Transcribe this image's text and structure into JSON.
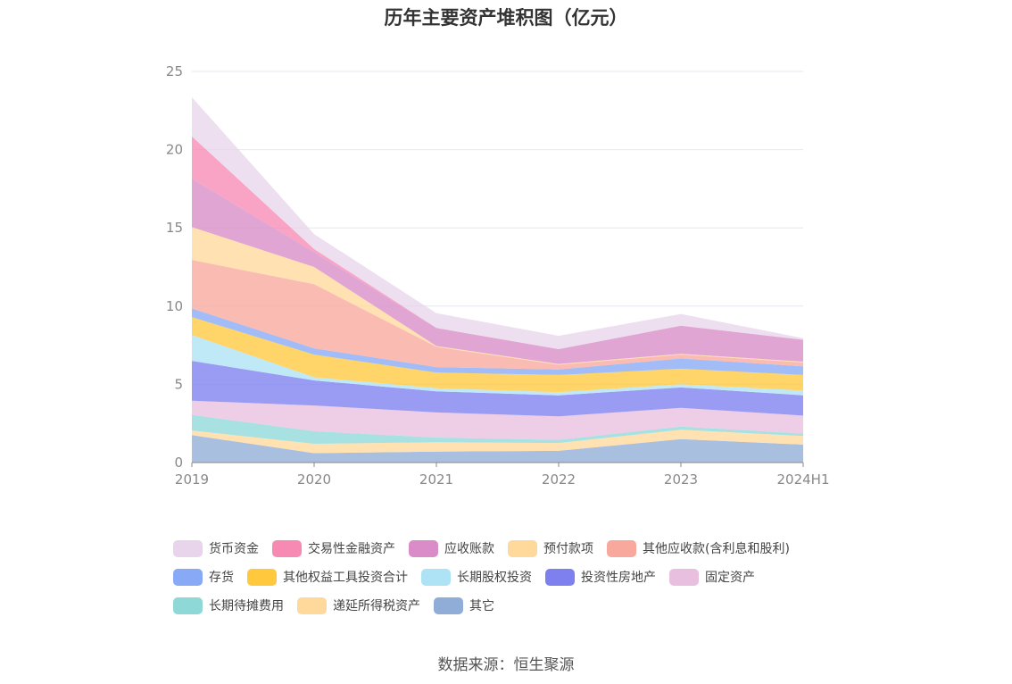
{
  "source_note": "数据来源：恒生聚源",
  "chart_data": {
    "type": "area",
    "stacked": true,
    "title": "历年主要资产堆积图（亿元）",
    "xlabel": "",
    "ylabel": "",
    "categories": [
      "2019",
      "2020",
      "2021",
      "2022",
      "2023",
      "2024H1"
    ],
    "ylim": [
      0,
      25
    ],
    "yticks": [
      0,
      5,
      10,
      15,
      20,
      25
    ],
    "grid": true,
    "legend_position": "bottom",
    "series": [
      {
        "name": "其它",
        "color": "#8fadd6",
        "values": [
          1.75,
          0.6,
          0.7,
          0.75,
          1.5,
          1.15
        ]
      },
      {
        "name": "递延所得税资产",
        "color": "#ffd89c",
        "values": [
          0.3,
          0.6,
          0.6,
          0.5,
          0.6,
          0.55
        ]
      },
      {
        "name": "长期待摊费用",
        "color": "#8ed8d8",
        "values": [
          1.0,
          0.8,
          0.3,
          0.2,
          0.2,
          0.15
        ]
      },
      {
        "name": "固定资产",
        "color": "#e9bfe0",
        "values": [
          0.9,
          1.65,
          1.6,
          1.5,
          1.2,
          1.15
        ]
      },
      {
        "name": "投资性房地产",
        "color": "#7e80f0",
        "values": [
          2.55,
          1.6,
          1.35,
          1.35,
          1.3,
          1.3
        ]
      },
      {
        "name": "长期股权投资",
        "color": "#aee3f5",
        "values": [
          1.65,
          0.2,
          0.2,
          0.2,
          0.2,
          0.3
        ]
      },
      {
        "name": "其他权益工具投资合计",
        "color": "#ffc83d",
        "values": [
          1.15,
          1.45,
          1.0,
          1.1,
          1.0,
          1.0
        ]
      },
      {
        "name": "存货",
        "color": "#88a9f5",
        "values": [
          0.55,
          0.4,
          0.35,
          0.35,
          0.65,
          0.55
        ]
      },
      {
        "name": "其他应收款(含利息和股利)",
        "color": "#f8a89d",
        "values": [
          3.1,
          4.1,
          1.3,
          0.3,
          0.25,
          0.25
        ]
      },
      {
        "name": "预付款项",
        "color": "#ffd89c",
        "values": [
          2.1,
          1.1,
          0.05,
          0.05,
          0.05,
          0.05
        ]
      },
      {
        "name": "应收账款",
        "color": "#d98cc8",
        "values": [
          3.1,
          0.95,
          1.15,
          0.95,
          1.8,
          1.4
        ]
      },
      {
        "name": "交易性金融资产",
        "color": "#f78ab3",
        "values": [
          2.7,
          0.2,
          0.0,
          0.0,
          0.0,
          0.0
        ]
      },
      {
        "name": "货币资金",
        "color": "#e8d5ec",
        "values": [
          2.5,
          0.95,
          0.95,
          0.85,
          0.75,
          0.1
        ]
      }
    ],
    "legend_order": [
      [
        "货币资金",
        "交易性金融资产",
        "应收账款",
        "预付款项",
        "其他应收款(含利息和股利)"
      ],
      [
        "存货",
        "其他权益工具投资合计",
        "长期股权投资",
        "投资性房地产",
        "固定资产"
      ],
      [
        "长期待摊费用",
        "递延所得税资产",
        "其它"
      ]
    ]
  }
}
